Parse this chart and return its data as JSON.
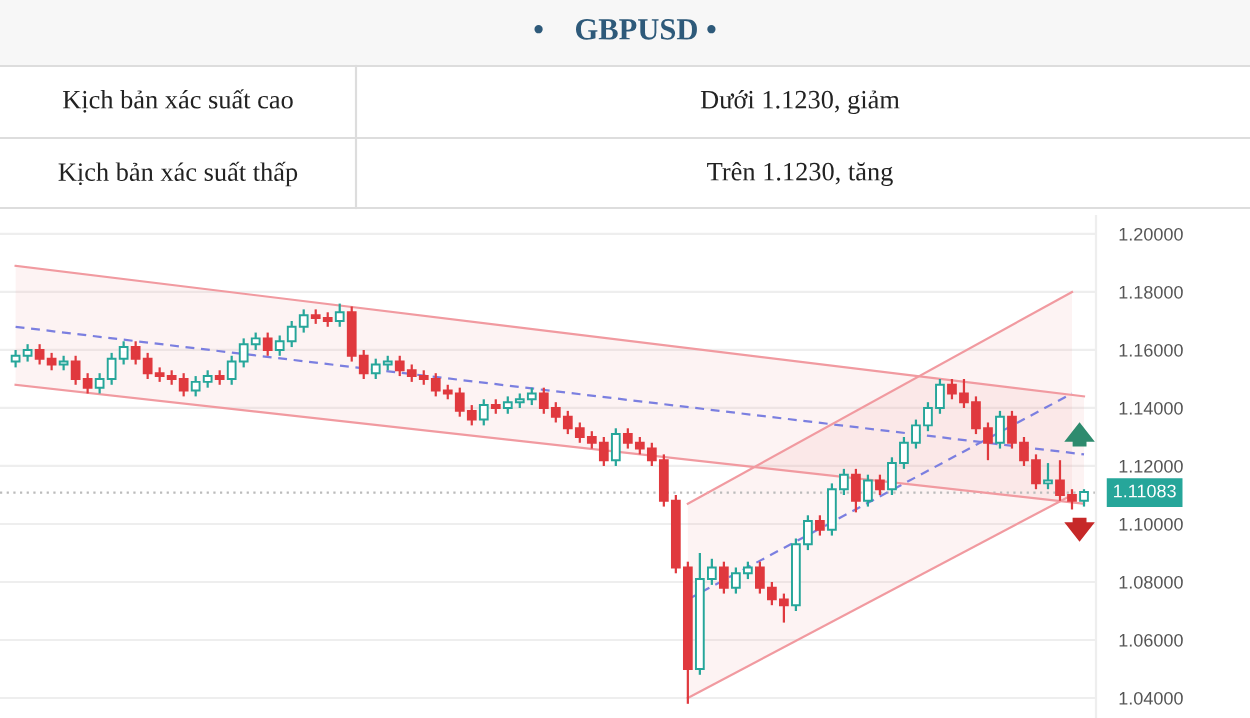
{
  "chart_data": {
    "type": "candlestick",
    "title": "•    GBPUSD •",
    "annotations": [
      "Kịch bản xác suất cao",
      "Dưới 1.1230, giảm",
      "Kịch bản xác suất thấp",
      "Trên 1.1230, tăng"
    ],
    "categories": [
      null,
      null,
      null,
      null,
      null,
      null,
      null,
      null,
      null,
      null,
      null,
      null,
      null,
      null,
      null,
      null,
      null,
      null,
      null,
      null,
      null,
      null,
      null,
      null,
      null,
      null,
      null,
      null,
      null,
      null,
      null,
      null,
      null,
      null,
      null,
      null,
      null,
      null,
      null,
      null,
      null,
      null,
      null,
      null,
      null,
      null,
      null,
      null,
      null,
      null,
      null,
      null,
      null,
      null,
      null,
      null,
      null,
      null,
      null,
      null,
      null,
      null,
      null,
      null,
      null,
      null,
      null,
      null,
      null,
      null,
      null,
      null,
      null,
      null,
      null,
      null,
      null,
      null,
      null,
      null,
      null,
      null,
      null,
      null,
      null,
      null,
      null,
      null,
      null,
      null
    ],
    "ohlc": [
      [
        1.156,
        1.16,
        1.154,
        1.158
      ],
      [
        1.158,
        1.162,
        1.156,
        1.16
      ],
      [
        1.16,
        1.162,
        1.155,
        1.157
      ],
      [
        1.157,
        1.159,
        1.153,
        1.155
      ],
      [
        1.155,
        1.158,
        1.153,
        1.156
      ],
      [
        1.156,
        1.158,
        1.148,
        1.15
      ],
      [
        1.15,
        1.152,
        1.145,
        1.147
      ],
      [
        1.147,
        1.152,
        1.145,
        1.15
      ],
      [
        1.15,
        1.159,
        1.148,
        1.157
      ],
      [
        1.157,
        1.163,
        1.155,
        1.161
      ],
      [
        1.161,
        1.163,
        1.155,
        1.157
      ],
      [
        1.157,
        1.159,
        1.15,
        1.152
      ],
      [
        1.152,
        1.154,
        1.149,
        1.151
      ],
      [
        1.151,
        1.153,
        1.148,
        1.15
      ],
      [
        1.15,
        1.152,
        1.144,
        1.146
      ],
      [
        1.146,
        1.151,
        1.144,
        1.149
      ],
      [
        1.149,
        1.153,
        1.147,
        1.151
      ],
      [
        1.151,
        1.153,
        1.148,
        1.15
      ],
      [
        1.15,
        1.158,
        1.148,
        1.156
      ],
      [
        1.156,
        1.164,
        1.154,
        1.162
      ],
      [
        1.162,
        1.166,
        1.16,
        1.164
      ],
      [
        1.164,
        1.166,
        1.158,
        1.16
      ],
      [
        1.16,
        1.165,
        1.158,
        1.163
      ],
      [
        1.163,
        1.17,
        1.161,
        1.168
      ],
      [
        1.168,
        1.174,
        1.166,
        1.172
      ],
      [
        1.172,
        1.174,
        1.169,
        1.171
      ],
      [
        1.171,
        1.173,
        1.168,
        1.17
      ],
      [
        1.17,
        1.176,
        1.168,
        1.173
      ],
      [
        1.173,
        1.175,
        1.156,
        1.158
      ],
      [
        1.158,
        1.16,
        1.15,
        1.152
      ],
      [
        1.152,
        1.157,
        1.15,
        1.155
      ],
      [
        1.155,
        1.158,
        1.153,
        1.156
      ],
      [
        1.156,
        1.158,
        1.151,
        1.153
      ],
      [
        1.153,
        1.155,
        1.149,
        1.151
      ],
      [
        1.151,
        1.153,
        1.148,
        1.15
      ],
      [
        1.15,
        1.152,
        1.144,
        1.146
      ],
      [
        1.146,
        1.148,
        1.143,
        1.145
      ],
      [
        1.145,
        1.147,
        1.137,
        1.139
      ],
      [
        1.139,
        1.141,
        1.134,
        1.136
      ],
      [
        1.136,
        1.143,
        1.134,
        1.141
      ],
      [
        1.141,
        1.143,
        1.138,
        1.14
      ],
      [
        1.14,
        1.144,
        1.138,
        1.142
      ],
      [
        1.142,
        1.145,
        1.14,
        1.143
      ],
      [
        1.143,
        1.147,
        1.141,
        1.145
      ],
      [
        1.145,
        1.147,
        1.138,
        1.14
      ],
      [
        1.14,
        1.142,
        1.135,
        1.137
      ],
      [
        1.137,
        1.139,
        1.131,
        1.133
      ],
      [
        1.133,
        1.135,
        1.128,
        1.13
      ],
      [
        1.13,
        1.132,
        1.126,
        1.128
      ],
      [
        1.128,
        1.13,
        1.12,
        1.122
      ],
      [
        1.122,
        1.133,
        1.12,
        1.131
      ],
      [
        1.131,
        1.133,
        1.126,
        1.128
      ],
      [
        1.128,
        1.13,
        1.124,
        1.126
      ],
      [
        1.126,
        1.128,
        1.12,
        1.122
      ],
      [
        1.122,
        1.124,
        1.106,
        1.108
      ],
      [
        1.108,
        1.11,
        1.083,
        1.085
      ],
      [
        1.085,
        1.087,
        1.038,
        1.05
      ],
      [
        1.05,
        1.09,
        1.048,
        1.081
      ],
      [
        1.081,
        1.088,
        1.079,
        1.085
      ],
      [
        1.085,
        1.087,
        1.076,
        1.078
      ],
      [
        1.078,
        1.085,
        1.076,
        1.083
      ],
      [
        1.083,
        1.087,
        1.081,
        1.085
      ],
      [
        1.085,
        1.087,
        1.076,
        1.078
      ],
      [
        1.078,
        1.08,
        1.072,
        1.074
      ],
      [
        1.074,
        1.076,
        1.066,
        1.072
      ],
      [
        1.072,
        1.095,
        1.07,
        1.093
      ],
      [
        1.093,
        1.103,
        1.091,
        1.101
      ],
      [
        1.101,
        1.103,
        1.096,
        1.098
      ],
      [
        1.098,
        1.114,
        1.096,
        1.112
      ],
      [
        1.112,
        1.119,
        1.11,
        1.117
      ],
      [
        1.117,
        1.119,
        1.104,
        1.108
      ],
      [
        1.108,
        1.117,
        1.106,
        1.115
      ],
      [
        1.115,
        1.117,
        1.11,
        1.112
      ],
      [
        1.112,
        1.123,
        1.11,
        1.121
      ],
      [
        1.121,
        1.13,
        1.119,
        1.128
      ],
      [
        1.128,
        1.136,
        1.126,
        1.134
      ],
      [
        1.134,
        1.142,
        1.132,
        1.14
      ],
      [
        1.14,
        1.15,
        1.138,
        1.148
      ],
      [
        1.148,
        1.15,
        1.143,
        1.145
      ],
      [
        1.145,
        1.15,
        1.14,
        1.142
      ],
      [
        1.142,
        1.144,
        1.131,
        1.133
      ],
      [
        1.133,
        1.135,
        1.122,
        1.128
      ],
      [
        1.128,
        1.139,
        1.126,
        1.137
      ],
      [
        1.137,
        1.139,
        1.126,
        1.128
      ],
      [
        1.128,
        1.13,
        1.12,
        1.122
      ],
      [
        1.122,
        1.124,
        1.112,
        1.114
      ],
      [
        1.114,
        1.121,
        1.112,
        1.115
      ],
      [
        1.115,
        1.122,
        1.108,
        1.11
      ],
      [
        1.11,
        1.112,
        1.105,
        1.108
      ],
      [
        1.108,
        1.112,
        1.106,
        1.111
      ]
    ],
    "series": [
      {
        "type": "line",
        "color": "#7b7fe0",
        "line_style": "dashed",
        "values": [
          1.168,
          null,
          null,
          null,
          null,
          null,
          null,
          null,
          null,
          null,
          null,
          null,
          null,
          null,
          null,
          null,
          null,
          null,
          null,
          null,
          null,
          null,
          null,
          null,
          null,
          null,
          null,
          null,
          null,
          null,
          null,
          null,
          null,
          null,
          null,
          null,
          null,
          null,
          null,
          null,
          null,
          null,
          null,
          null,
          null,
          null,
          null,
          null,
          null,
          null,
          null,
          null,
          null,
          null,
          null,
          null,
          null,
          null,
          null,
          null,
          null,
          null,
          null,
          null,
          null,
          null,
          null,
          null,
          null,
          null,
          null,
          null,
          null,
          null,
          null,
          null,
          null,
          null,
          null,
          null,
          null,
          null,
          null,
          null,
          null,
          null,
          null,
          null,
          null,
          1.124
        ],
        "lower": [
          1.148,
          null,
          null,
          null,
          null,
          null,
          null,
          null,
          null,
          null,
          null,
          null,
          null,
          null,
          null,
          null,
          null,
          null,
          null,
          null,
          null,
          null,
          null,
          null,
          null,
          null,
          null,
          null,
          null,
          null,
          null,
          null,
          null,
          null,
          null,
          null,
          null,
          null,
          null,
          null,
          null,
          null,
          null,
          null,
          null,
          null,
          null,
          null,
          null,
          null,
          null,
          null,
          null,
          null,
          null,
          null,
          null,
          null,
          null,
          null,
          null,
          null,
          null,
          null,
          null,
          null,
          null,
          null,
          null,
          null,
          null,
          null,
          null,
          null,
          null,
          null,
          null,
          null,
          null,
          null,
          null,
          null,
          null,
          null,
          null,
          null,
          null,
          null,
          null,
          1.107
        ],
        "upper": [
          1.189,
          null,
          null,
          null,
          null,
          null,
          null,
          null,
          null,
          null,
          null,
          null,
          null,
          null,
          null,
          null,
          null,
          null,
          null,
          null,
          null,
          null,
          null,
          null,
          null,
          null,
          null,
          null,
          null,
          null,
          null,
          null,
          null,
          null,
          null,
          null,
          null,
          null,
          null,
          null,
          null,
          null,
          null,
          null,
          null,
          null,
          null,
          null,
          null,
          null,
          null,
          null,
          null,
          null,
          null,
          null,
          null,
          null,
          null,
          null,
          null,
          null,
          null,
          null,
          null,
          null,
          null,
          null,
          null,
          null,
          null,
          null,
          null,
          null,
          null,
          null,
          null,
          null,
          null,
          null,
          null,
          null,
          null,
          null,
          null,
          null,
          null,
          null,
          null,
          1.144
        ]
      },
      {
        "type": "line",
        "color": "#7b7fe0",
        "line_style": "dashed",
        "values": [
          null,
          null,
          null,
          null,
          null,
          null,
          null,
          null,
          null,
          null,
          null,
          null,
          null,
          null,
          null,
          null,
          null,
          null,
          null,
          null,
          null,
          null,
          null,
          null,
          null,
          null,
          null,
          null,
          null,
          null,
          null,
          null,
          null,
          null,
          null,
          null,
          null,
          null,
          null,
          null,
          null,
          null,
          null,
          null,
          null,
          null,
          null,
          null,
          null,
          null,
          null,
          null,
          null,
          null,
          null,
          null,
          1.074,
          null,
          null,
          null,
          null,
          null,
          null,
          null,
          null,
          null,
          null,
          null,
          null,
          null,
          null,
          null,
          null,
          null,
          null,
          null,
          null,
          null,
          null,
          null,
          null,
          null,
          null,
          null,
          null,
          null,
          null,
          null,
          1.145,
          null
        ],
        "lower": [
          null,
          null,
          null,
          null,
          null,
          null,
          null,
          null,
          null,
          null,
          null,
          null,
          null,
          null,
          null,
          null,
          null,
          null,
          null,
          null,
          null,
          null,
          null,
          null,
          null,
          null,
          null,
          null,
          null,
          null,
          null,
          null,
          null,
          null,
          null,
          null,
          null,
          null,
          null,
          null,
          null,
          null,
          null,
          null,
          null,
          null,
          null,
          null,
          null,
          null,
          null,
          null,
          null,
          null,
          null,
          null,
          1.04,
          null,
          null,
          null,
          null,
          null,
          null,
          null,
          null,
          null,
          null,
          null,
          null,
          null,
          null,
          null,
          null,
          null,
          null,
          null,
          null,
          null,
          null,
          null,
          null,
          null,
          null,
          null,
          null,
          null,
          null,
          null,
          1.11,
          null
        ],
        "upper": [
          null,
          null,
          null,
          null,
          null,
          null,
          null,
          null,
          null,
          null,
          null,
          null,
          null,
          null,
          null,
          null,
          null,
          null,
          null,
          null,
          null,
          null,
          null,
          null,
          null,
          null,
          null,
          null,
          null,
          null,
          null,
          null,
          null,
          null,
          null,
          null,
          null,
          null,
          null,
          null,
          null,
          null,
          null,
          null,
          null,
          null,
          null,
          null,
          null,
          null,
          null,
          null,
          null,
          null,
          null,
          null,
          1.107,
          null,
          null,
          null,
          null,
          null,
          null,
          null,
          null,
          null,
          null,
          null,
          null,
          null,
          null,
          null,
          null,
          null,
          null,
          null,
          null,
          null,
          null,
          null,
          null,
          null,
          null,
          null,
          null,
          null,
          null,
          null,
          1.18,
          null
        ]
      },
      {
        "type": "line",
        "color": "#f19aa0",
        "line_style": "solid",
        "values": [
          1.148,
          null,
          null,
          null,
          null,
          null,
          null,
          null,
          null,
          null,
          null,
          null,
          null,
          null,
          null,
          null,
          null,
          null,
          null,
          null,
          null,
          null,
          null,
          null,
          null,
          null,
          null,
          null,
          null,
          null,
          null,
          null,
          null,
          null,
          null,
          null,
          null,
          null,
          null,
          null,
          null,
          null,
          null,
          null,
          null,
          null,
          null,
          null,
          null,
          null,
          null,
          null,
          null,
          null,
          null,
          null,
          null,
          null,
          null,
          null,
          null,
          null,
          null,
          null,
          null,
          null,
          null,
          null,
          null,
          null,
          null,
          null,
          null,
          null,
          null,
          null,
          null,
          null,
          null,
          null,
          null,
          null,
          null,
          null,
          null,
          null,
          null,
          null,
          null,
          1.107
        ]
      },
      {
        "type": "line",
        "color": "#f19aa0",
        "line_style": "solid",
        "values": [
          1.189,
          null,
          null,
          null,
          null,
          null,
          null,
          null,
          null,
          null,
          null,
          null,
          null,
          null,
          null,
          null,
          null,
          null,
          null,
          null,
          null,
          null,
          null,
          null,
          null,
          null,
          null,
          null,
          null,
          null,
          null,
          null,
          null,
          null,
          null,
          null,
          null,
          null,
          null,
          null,
          null,
          null,
          null,
          null,
          null,
          null,
          null,
          null,
          null,
          null,
          null,
          null,
          null,
          null,
          null,
          null,
          null,
          null,
          null,
          null,
          null,
          null,
          null,
          null,
          null,
          null,
          null,
          null,
          null,
          null,
          null,
          null,
          null,
          null,
          null,
          null,
          null,
          null,
          null,
          null,
          null,
          null,
          null,
          null,
          null,
          null,
          null,
          null,
          null,
          1.144
        ]
      },
      {
        "type": "line",
        "color": "#f19aa0",
        "line_style": "solid",
        "values": [
          null,
          null,
          null,
          null,
          null,
          null,
          null,
          null,
          null,
          null,
          null,
          null,
          null,
          null,
          null,
          null,
          null,
          null,
          null,
          null,
          null,
          null,
          null,
          null,
          null,
          null,
          null,
          null,
          null,
          null,
          null,
          null,
          null,
          null,
          null,
          null,
          null,
          null,
          null,
          null,
          null,
          null,
          null,
          null,
          null,
          null,
          null,
          null,
          null,
          null,
          null,
          null,
          null,
          null,
          null,
          null,
          1.04,
          null,
          null,
          null,
          null,
          null,
          null,
          null,
          null,
          null,
          null,
          null,
          null,
          null,
          null,
          null,
          null,
          null,
          null,
          null,
          null,
          null,
          null,
          null,
          null,
          null,
          null,
          null,
          null,
          null,
          null,
          null,
          1.11,
          null
        ]
      },
      {
        "type": "line",
        "color": "#f19aa0",
        "line_style": "solid",
        "values": [
          null,
          null,
          null,
          null,
          null,
          null,
          null,
          null,
          null,
          null,
          null,
          null,
          null,
          null,
          null,
          null,
          null,
          null,
          null,
          null,
          null,
          null,
          null,
          null,
          null,
          null,
          null,
          null,
          null,
          null,
          null,
          null,
          null,
          null,
          null,
          null,
          null,
          null,
          null,
          null,
          null,
          null,
          null,
          null,
          null,
          null,
          null,
          null,
          null,
          null,
          null,
          null,
          null,
          null,
          null,
          null,
          1.107,
          null,
          null,
          null,
          null,
          null,
          null,
          null,
          null,
          null,
          null,
          null,
          null,
          null,
          null,
          null,
          null,
          null,
          null,
          null,
          null,
          null,
          null,
          null,
          null,
          null,
          null,
          null,
          null,
          null,
          null,
          null,
          1.18,
          null
        ]
      }
    ],
    "ref_lines": [
      {
        "axis": "y",
        "value": 1.11083,
        "label": "1.11083",
        "color": "#bbbbbb",
        "line_style": "dotted"
      }
    ],
    "ylim": [
      1.0331,
      1.2062
    ],
    "yticks": [
      {
        "value": 1.04,
        "label": "1.04000"
      },
      {
        "value": 1.06,
        "label": "1.06000"
      },
      {
        "value": 1.08,
        "label": "1.08000"
      },
      {
        "value": 1.1,
        "label": "1.10000"
      },
      {
        "value": 1.12,
        "label": "1.12000"
      },
      {
        "value": 1.14,
        "label": "1.14000"
      },
      {
        "value": 1.16,
        "label": "1.16000"
      },
      {
        "value": 1.18,
        "label": "1.18000"
      },
      {
        "value": 1.2,
        "label": "1.20000"
      }
    ],
    "tick_labels": "y",
    "grid": "y"
  }
}
